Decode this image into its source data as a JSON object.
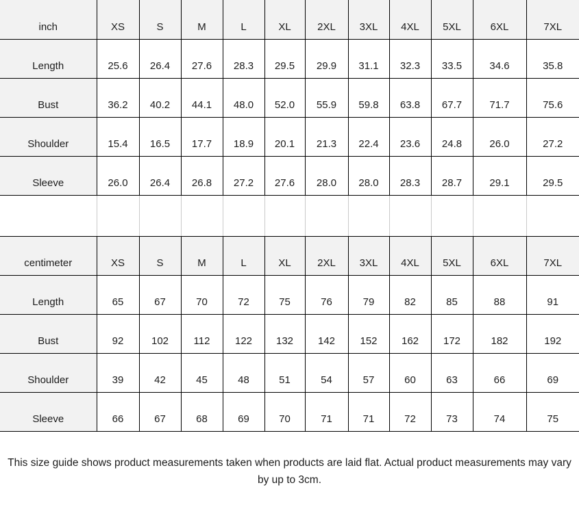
{
  "colors": {
    "bg": "#ffffff",
    "text": "#1c1c1c",
    "border": "#000000",
    "header_bg": "#f2f2f2",
    "spacer_line": "#c9c9c9"
  },
  "footer": {
    "note": "This size guide shows product measurements taken when products are laid flat. Actual product measurements may vary by up to 3cm."
  },
  "chart_data": [
    {
      "type": "table",
      "unit_label": "inch",
      "columns": [
        "XS",
        "S",
        "M",
        "L",
        "XL",
        "2XL",
        "3XL",
        "4XL",
        "5XL",
        "6XL",
        "7XL"
      ],
      "rows": [
        {
          "label": "Length",
          "values": [
            "25.6",
            "26.4",
            "27.6",
            "28.3",
            "29.5",
            "29.9",
            "31.1",
            "32.3",
            "33.5",
            "34.6",
            "35.8"
          ]
        },
        {
          "label": "Bust",
          "values": [
            "36.2",
            "40.2",
            "44.1",
            "48.0",
            "52.0",
            "55.9",
            "59.8",
            "63.8",
            "67.7",
            "71.7",
            "75.6"
          ]
        },
        {
          "label": "Shoulder",
          "values": [
            "15.4",
            "16.5",
            "17.7",
            "18.9",
            "20.1",
            "21.3",
            "22.4",
            "23.6",
            "24.8",
            "26.0",
            "27.2"
          ]
        },
        {
          "label": "Sleeve",
          "values": [
            "26.0",
            "26.4",
            "26.8",
            "27.2",
            "27.6",
            "28.0",
            "28.0",
            "28.3",
            "28.7",
            "29.1",
            "29.5"
          ]
        }
      ]
    },
    {
      "type": "table",
      "unit_label": "centimeter",
      "columns": [
        "XS",
        "S",
        "M",
        "L",
        "XL",
        "2XL",
        "3XL",
        "4XL",
        "5XL",
        "6XL",
        "7XL"
      ],
      "rows": [
        {
          "label": "Length",
          "values": [
            "65",
            "67",
            "70",
            "72",
            "75",
            "76",
            "79",
            "82",
            "85",
            "88",
            "91"
          ]
        },
        {
          "label": "Bust",
          "values": [
            "92",
            "102",
            "112",
            "122",
            "132",
            "142",
            "152",
            "162",
            "172",
            "182",
            "192"
          ]
        },
        {
          "label": "Shoulder",
          "values": [
            "39",
            "42",
            "45",
            "48",
            "51",
            "54",
            "57",
            "60",
            "63",
            "66",
            "69"
          ]
        },
        {
          "label": "Sleeve",
          "values": [
            "66",
            "67",
            "68",
            "69",
            "70",
            "71",
            "71",
            "72",
            "73",
            "74",
            "75"
          ]
        }
      ]
    }
  ]
}
